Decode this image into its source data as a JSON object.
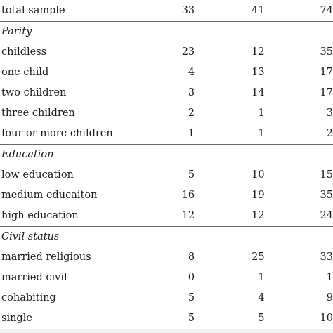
{
  "rows": [
    {
      "type": "total",
      "label": "total sample",
      "v1": "33",
      "v2": "41",
      "v3": "74"
    },
    {
      "type": "section",
      "label": "Parity"
    },
    {
      "type": "data",
      "label": "childless",
      "v1": "23",
      "v2": "12",
      "v3": "35"
    },
    {
      "type": "data",
      "label": "one child",
      "v1": "4",
      "v2": "13",
      "v3": "17"
    },
    {
      "type": "data",
      "label": "two children",
      "v1": "3",
      "v2": "14",
      "v3": "17"
    },
    {
      "type": "data",
      "label": "three children",
      "v1": "2",
      "v2": "1",
      "v3": "3"
    },
    {
      "type": "data",
      "label": "four or more children",
      "v1": "1",
      "v2": "1",
      "v3": "2"
    },
    {
      "type": "section",
      "label": "Education"
    },
    {
      "type": "data",
      "label": "low education",
      "v1": "5",
      "v2": "10",
      "v3": "15"
    },
    {
      "type": "data",
      "label": "medium educaiton",
      "v1": "16",
      "v2": "19",
      "v3": "35"
    },
    {
      "type": "data",
      "label": "high education",
      "v1": "12",
      "v2": "12",
      "v3": "24"
    },
    {
      "type": "section",
      "label": "Civil status"
    },
    {
      "type": "data",
      "label": "married religious",
      "v1": "8",
      "v2": "25",
      "v3": "33"
    },
    {
      "type": "data",
      "label": "married civil",
      "v1": "0",
      "v2": "1",
      "v3": "1"
    },
    {
      "type": "data",
      "label": "cohabiting",
      "v1": "5",
      "v2": "4",
      "v3": "9"
    },
    {
      "type": "data",
      "label": "single",
      "v1": "5",
      "v2": "5",
      "v3": "10"
    }
  ]
}
